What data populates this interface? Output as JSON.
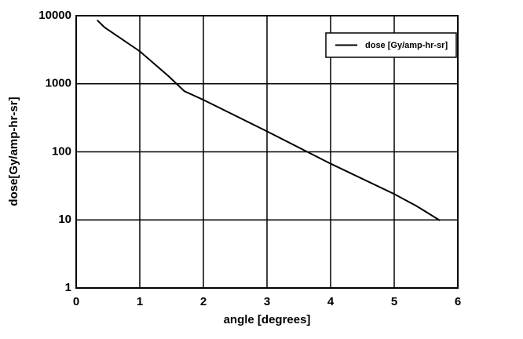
{
  "chart_data": {
    "type": "line",
    "x_label": "angle [degrees]",
    "y_label": "dose[Gy/amp-hr-sr]",
    "x": [
      0.33,
      0.45,
      1,
      1.45,
      1.7,
      2,
      3,
      4,
      5,
      5.35,
      5.72
    ],
    "series": [
      {
        "name": "dose [Gy/amp-hr-sr]",
        "color": "#000000",
        "values": [
          8600,
          6700,
          3000,
          1300,
          780,
          580,
          200,
          67,
          24,
          16,
          9.8
        ]
      }
    ],
    "xlim": [
      0,
      6
    ],
    "xticks": [
      0,
      1,
      2,
      3,
      4,
      5,
      6
    ],
    "ylim": [
      1,
      10000
    ],
    "yticks": [
      1,
      10,
      100,
      1000,
      10000
    ],
    "ylog": true,
    "grid": true,
    "legend": "top-right"
  }
}
